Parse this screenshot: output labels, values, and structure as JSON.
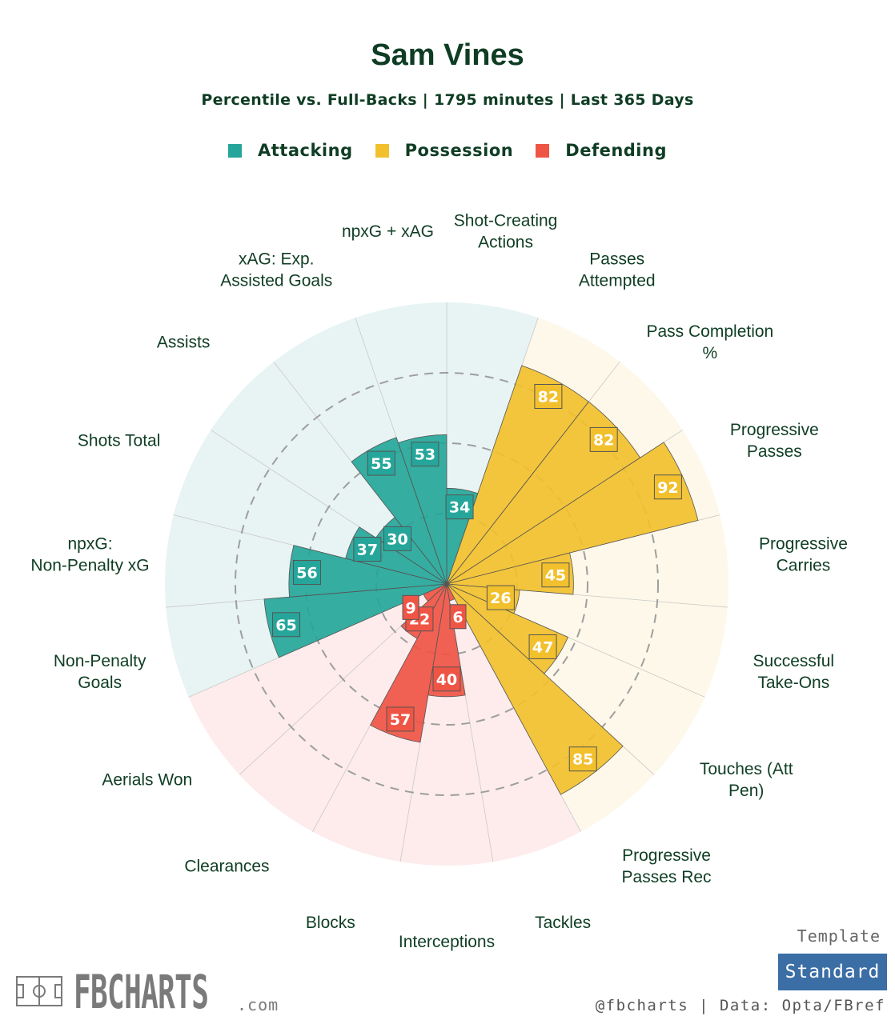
{
  "title": "Sam Vines",
  "subtitle": "Percentile vs. Full-Backs | 1795 minutes | Last 365 Days",
  "legend": [
    {
      "label": "Attacking",
      "color": "#26a69a"
    },
    {
      "label": "Possession",
      "color": "#f2c02d"
    },
    {
      "label": "Defending",
      "color": "#ef5545"
    }
  ],
  "colors": {
    "attacking": "#26a69a",
    "possession": "#f2c02d",
    "defending": "#ef5545",
    "attacking_bg": "#e8f4f3",
    "possession_bg": "#fdf8e9",
    "defending_bg": "#feecec",
    "text": "#0f3d24"
  },
  "chart_data": {
    "type": "polar-bar",
    "title": "Sam Vines",
    "subtitle": "Percentile vs. Full-Backs | 1795 minutes | Last 365 Days",
    "rlim": [
      0,
      100
    ],
    "gridlines": [
      25,
      50,
      75
    ],
    "metrics": [
      {
        "label": "Shot-Creating Actions",
        "value": 34,
        "group": "attacking"
      },
      {
        "label": "Passes Attempted",
        "value": 82,
        "group": "possession"
      },
      {
        "label": "Pass Completion %",
        "value": 82,
        "group": "possession"
      },
      {
        "label": "Progressive Passes",
        "value": 92,
        "group": "possession"
      },
      {
        "label": "Progressive Carries",
        "value": 45,
        "group": "possession"
      },
      {
        "label": "Successful Take-Ons",
        "value": 26,
        "group": "possession"
      },
      {
        "label": "Touches (Att Pen)",
        "value": 47,
        "group": "possession"
      },
      {
        "label": "Progressive Passes Rec",
        "value": 85,
        "group": "possession"
      },
      {
        "label": "Tackles",
        "value": 6,
        "group": "defending"
      },
      {
        "label": "Interceptions",
        "value": 40,
        "group": "defending"
      },
      {
        "label": "Blocks",
        "value": 57,
        "group": "defending"
      },
      {
        "label": "Clearances",
        "value": 22,
        "group": "defending"
      },
      {
        "label": "Aerials Won",
        "value": 9,
        "group": "defending"
      },
      {
        "label": "Non-Penalty Goals",
        "value": 65,
        "group": "attacking"
      },
      {
        "label": "npxG: Non-Penalty xG",
        "value": 56,
        "group": "attacking"
      },
      {
        "label": "Shots Total",
        "value": 37,
        "group": "attacking"
      },
      {
        "label": "Assists",
        "value": 30,
        "group": "attacking"
      },
      {
        "label": "xAG: Exp. Assisted Goals",
        "value": 55,
        "group": "attacking"
      },
      {
        "label": "npxG + xAG",
        "value": 53,
        "group": "attacking"
      }
    ]
  },
  "footer": {
    "brand": "FBCHARTS",
    "brand_suffix": ".com",
    "template_label": "Template",
    "template_value": "Standard",
    "credits": "@fbcharts | Data: Opta/FBref"
  }
}
